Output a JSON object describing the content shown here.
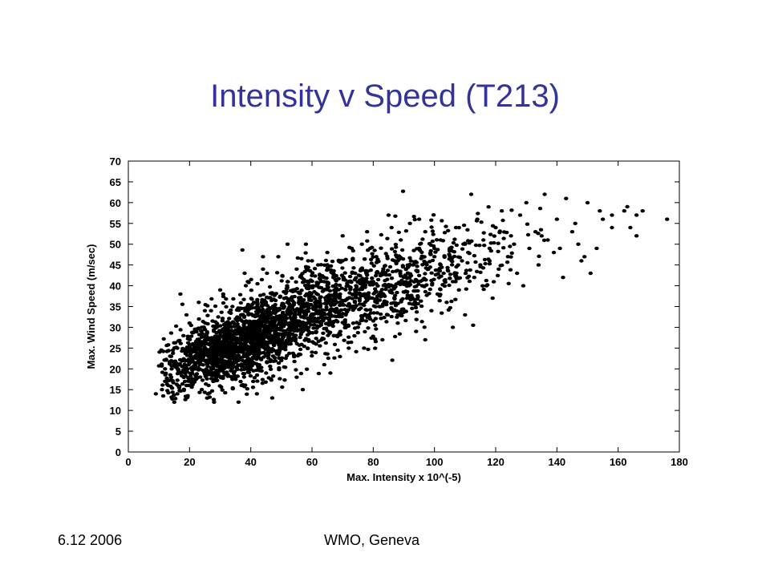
{
  "slide": {
    "title": "Intensity v Speed (T213)",
    "footer_date": "6.12 2006",
    "footer_venue": "WMO, Geneva"
  },
  "colors": {
    "title": "#333399",
    "points": "#000000"
  },
  "chart_data": {
    "type": "scatter",
    "xlabel": "Max. Intensity x 10^(-5)",
    "ylabel": "Max. Wind Speed (m/sec)",
    "xlim": [
      0,
      180
    ],
    "ylim": [
      0,
      70
    ],
    "xticks": [
      0,
      20,
      40,
      60,
      80,
      100,
      120,
      140,
      160,
      180
    ],
    "yticks": [
      0,
      5,
      10,
      15,
      20,
      25,
      30,
      35,
      40,
      45,
      50,
      55,
      60,
      65,
      70
    ],
    "grid": false,
    "legend": "none",
    "points": [
      [
        9,
        14
      ],
      [
        11,
        15
      ],
      [
        12,
        17
      ],
      [
        13,
        16
      ],
      [
        12,
        20
      ],
      [
        14,
        23
      ],
      [
        15,
        12
      ],
      [
        16,
        14
      ],
      [
        15,
        21
      ],
      [
        16,
        25
      ],
      [
        17,
        19
      ],
      [
        18,
        28
      ],
      [
        18,
        22
      ],
      [
        19,
        33
      ],
      [
        17,
        38
      ],
      [
        20,
        18
      ],
      [
        21,
        26
      ],
      [
        22,
        20
      ],
      [
        23,
        36
      ],
      [
        24,
        15
      ],
      [
        24,
        30
      ],
      [
        25,
        22
      ],
      [
        26,
        27
      ],
      [
        27,
        34
      ],
      [
        28,
        12
      ],
      [
        28,
        19
      ],
      [
        29,
        24
      ],
      [
        30,
        39
      ],
      [
        30,
        28
      ],
      [
        31,
        21
      ],
      [
        32,
        25
      ],
      [
        33,
        31
      ],
      [
        34,
        18
      ],
      [
        34,
        35
      ],
      [
        35,
        23
      ],
      [
        36,
        29
      ],
      [
        37,
        16
      ],
      [
        37,
        33
      ],
      [
        38,
        26
      ],
      [
        39,
        41
      ],
      [
        40,
        21
      ],
      [
        40,
        30
      ],
      [
        41,
        36
      ],
      [
        42,
        14
      ],
      [
        42,
        25
      ],
      [
        43,
        28
      ],
      [
        44,
        44
      ],
      [
        45,
        32
      ],
      [
        45,
        19
      ],
      [
        46,
        24
      ],
      [
        47,
        38
      ],
      [
        48,
        27
      ],
      [
        49,
        47
      ],
      [
        50,
        30
      ],
      [
        50,
        22
      ],
      [
        51,
        35
      ],
      [
        52,
        41
      ],
      [
        53,
        26
      ],
      [
        54,
        31
      ],
      [
        55,
        44
      ],
      [
        55,
        18
      ],
      [
        56,
        37
      ],
      [
        57,
        29
      ],
      [
        58,
        50
      ],
      [
        58,
        33
      ],
      [
        59,
        40
      ],
      [
        60,
        24
      ],
      [
        61,
        36
      ],
      [
        62,
        45
      ],
      [
        63,
        31
      ],
      [
        64,
        21
      ],
      [
        64,
        39
      ],
      [
        65,
        48
      ],
      [
        66,
        34
      ],
      [
        67,
        42
      ],
      [
        68,
        28
      ],
      [
        69,
        37
      ],
      [
        70,
        46
      ],
      [
        71,
        33
      ],
      [
        72,
        25
      ],
      [
        72,
        41
      ],
      [
        73,
        49
      ],
      [
        74,
        36
      ],
      [
        75,
        30
      ],
      [
        76,
        44
      ],
      [
        77,
        38
      ],
      [
        78,
        53
      ],
      [
        79,
        32
      ],
      [
        80,
        41
      ],
      [
        81,
        47
      ],
      [
        82,
        35
      ],
      [
        83,
        27
      ],
      [
        84,
        43
      ],
      [
        85,
        57
      ],
      [
        86,
        39
      ],
      [
        87,
        46
      ],
      [
        88,
        33
      ],
      [
        89,
        51
      ],
      [
        90,
        42
      ],
      [
        91,
        37
      ],
      [
        92,
        55
      ],
      [
        93,
        45
      ],
      [
        94,
        29
      ],
      [
        95,
        49
      ],
      [
        96,
        40
      ],
      [
        97,
        53
      ],
      [
        98,
        44
      ],
      [
        99,
        34
      ],
      [
        100,
        47
      ],
      [
        101,
        38
      ],
      [
        102,
        51
      ],
      [
        103,
        43
      ],
      [
        104,
        36
      ],
      [
        105,
        49
      ],
      [
        106,
        41
      ],
      [
        107,
        54
      ],
      [
        108,
        39
      ],
      [
        109,
        46
      ],
      [
        110,
        33
      ],
      [
        111,
        48
      ],
      [
        112,
        62
      ],
      [
        113,
        42
      ],
      [
        114,
        56
      ],
      [
        115,
        45
      ],
      [
        116,
        51
      ],
      [
        117,
        40
      ],
      [
        118,
        49
      ],
      [
        120,
        54
      ],
      [
        121,
        44
      ],
      [
        122,
        58
      ],
      [
        124,
        47
      ],
      [
        125,
        52
      ],
      [
        127,
        43
      ],
      [
        128,
        57
      ],
      [
        130,
        60
      ],
      [
        131,
        49
      ],
      [
        133,
        53
      ],
      [
        134,
        45
      ],
      [
        136,
        62
      ],
      [
        137,
        51
      ],
      [
        139,
        48
      ],
      [
        140,
        56
      ],
      [
        142,
        42
      ],
      [
        143,
        61
      ],
      [
        145,
        53
      ],
      [
        147,
        50
      ],
      [
        149,
        47
      ],
      [
        150,
        60
      ],
      [
        151,
        43
      ],
      [
        153,
        49
      ],
      [
        155,
        56
      ],
      [
        158,
        57
      ],
      [
        162,
        58
      ],
      [
        163,
        59
      ],
      [
        164,
        54
      ],
      [
        166,
        57
      ],
      [
        168,
        58
      ],
      [
        176,
        56
      ],
      [
        166,
        52
      ],
      [
        154,
        58
      ],
      [
        146,
        55
      ],
      [
        129,
        40
      ],
      [
        119,
        37
      ],
      [
        106,
        30
      ],
      [
        97,
        27
      ],
      [
        88,
        31
      ],
      [
        77,
        25
      ],
      [
        66,
        19
      ],
      [
        57,
        15
      ],
      [
        47,
        13
      ],
      [
        36,
        12
      ],
      [
        26,
        14
      ],
      [
        19,
        16
      ],
      [
        14,
        18
      ],
      [
        20,
        31
      ],
      [
        25,
        34
      ],
      [
        31,
        38
      ],
      [
        38,
        43
      ],
      [
        44,
        47
      ],
      [
        52,
        50
      ],
      [
        60,
        46
      ],
      [
        70,
        52
      ],
      [
        79,
        49
      ],
      [
        86,
        54
      ],
      [
        95,
        56
      ],
      [
        102,
        45
      ],
      [
        110,
        50
      ],
      [
        118,
        46
      ],
      [
        126,
        50
      ],
      [
        135,
        52
      ],
      [
        141,
        49
      ],
      [
        148,
        46
      ],
      [
        158,
        54
      ]
    ],
    "dense_core": [
      {
        "cx": 30,
        "cy": 24,
        "sx": 11,
        "sy": 4.5,
        "n": 900
      },
      {
        "cx": 45,
        "cy": 29,
        "sx": 12,
        "sy": 6,
        "n": 800
      },
      {
        "cx": 65,
        "cy": 36,
        "sx": 14,
        "sy": 6.5,
        "n": 500
      },
      {
        "cx": 85,
        "cy": 40,
        "sx": 13,
        "sy": 7,
        "n": 300
      },
      {
        "cx": 105,
        "cy": 45,
        "sx": 12,
        "sy": 6.5,
        "n": 160
      }
    ]
  }
}
